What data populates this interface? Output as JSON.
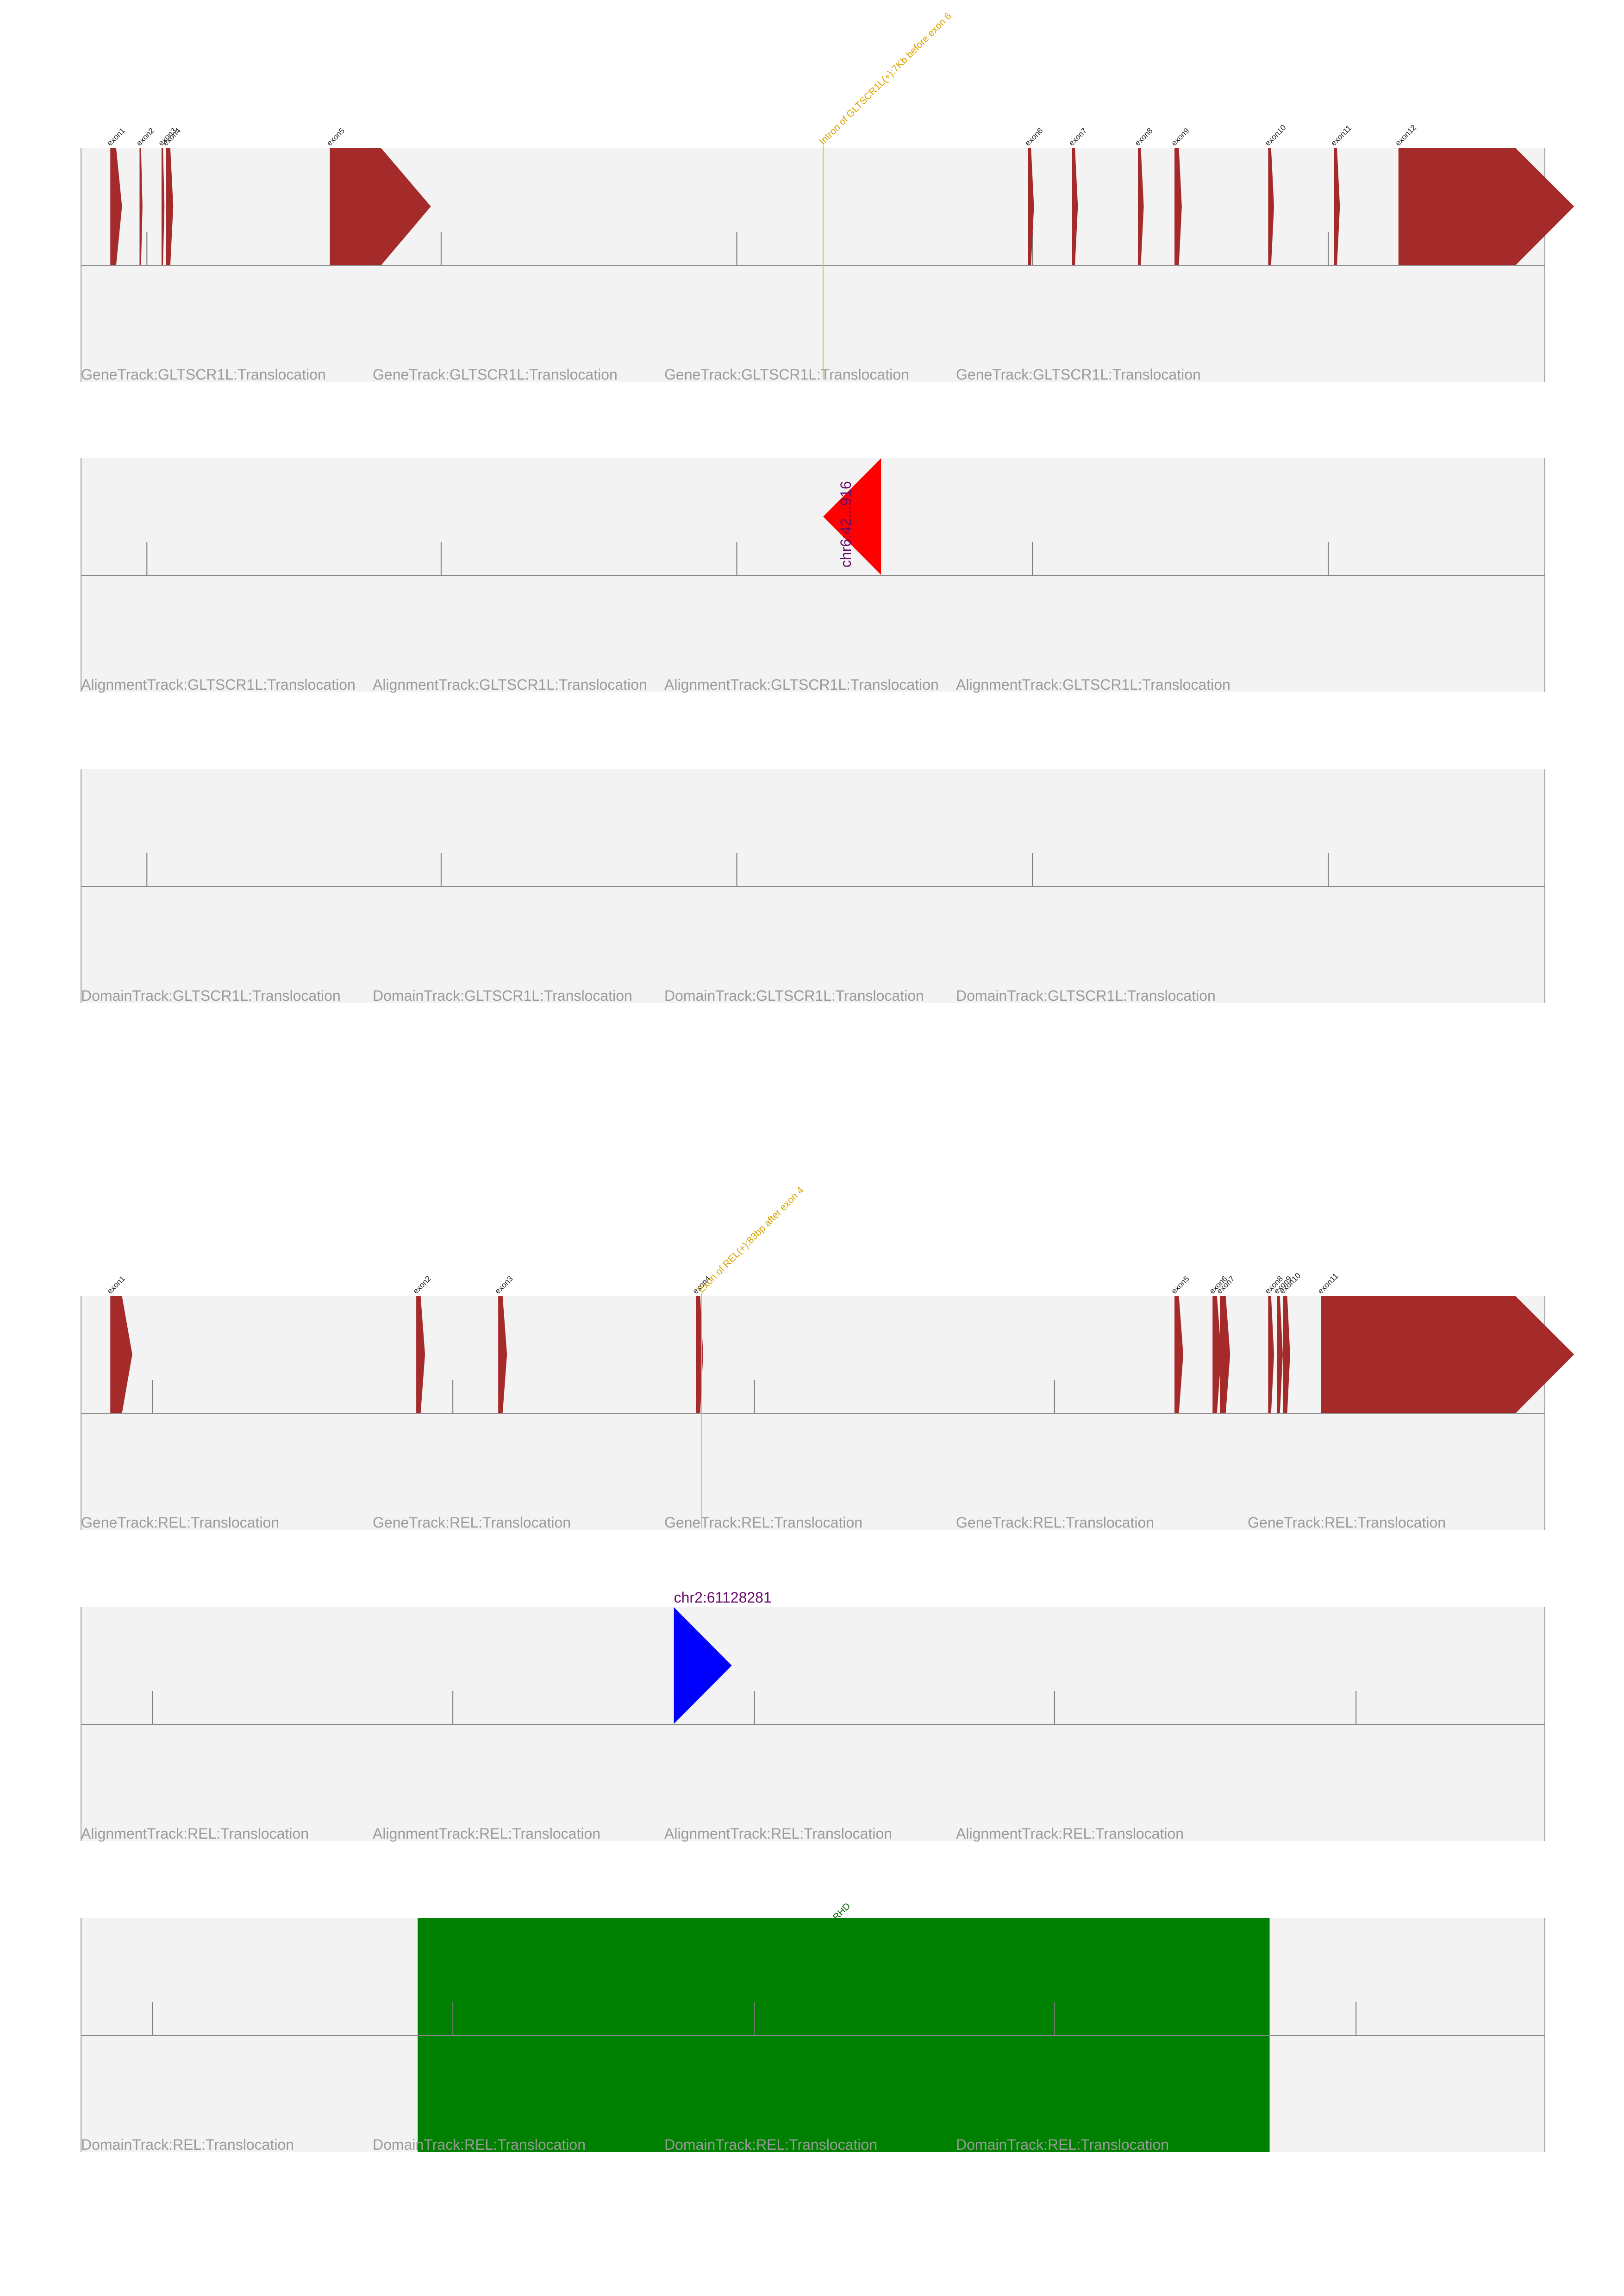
{
  "colors": {
    "panel_bg": "#f3f3f3",
    "exon": "#a52a2a",
    "breakpoint": "#e8b64a",
    "alignment_upstream": "#ff0000",
    "alignment_downstream": "#0000ff",
    "domain": "#008000",
    "track_label": "#9a9a9a",
    "position_label": "#6a0a6a"
  },
  "genes": [
    {
      "gene": "GLTSCR1L",
      "exons": [
        {
          "label": "exon1",
          "start": 0.02,
          "end": 0.024,
          "head": 0.004
        },
        {
          "label": "exon2",
          "start": 0.04,
          "end": 0.041,
          "head": 0.001
        },
        {
          "label": "exon3",
          "start": 0.055,
          "end": 0.056,
          "head": 0.001
        },
        {
          "label": "exon4",
          "start": 0.058,
          "end": 0.061,
          "head": 0.002
        },
        {
          "label": "exon5",
          "start": 0.17,
          "end": 0.205,
          "head": 0.034
        },
        {
          "label": "exon6",
          "start": 0.647,
          "end": 0.649,
          "head": 0.002
        },
        {
          "label": "exon7",
          "start": 0.677,
          "end": 0.679,
          "head": 0.002
        },
        {
          "label": "exon8",
          "start": 0.722,
          "end": 0.724,
          "head": 0.002
        },
        {
          "label": "exon9",
          "start": 0.747,
          "end": 0.75,
          "head": 0.002
        },
        {
          "label": "exon10",
          "start": 0.811,
          "end": 0.813,
          "head": 0.002
        },
        {
          "label": "exon11",
          "start": 0.856,
          "end": 0.858,
          "head": 0.002
        },
        {
          "label": "exon12",
          "start": 0.9,
          "end": 0.98,
          "head": 0.04
        }
      ],
      "ticks": [
        0.045,
        0.246,
        0.448,
        0.65,
        0.852
      ],
      "breakpoint": {
        "pos": 0.507,
        "label": "Intron of GLTSCR1L(+):7Kb before exon 6"
      },
      "alignment": {
        "pos": 0.507,
        "direction": "left",
        "color": "#ff0000",
        "label": "chr6:42...916"
      },
      "domains": [],
      "tracks": [
        {
          "name": "gene",
          "labels": [
            "GeneTrack:GLTSCR1L:Translocation",
            "GeneTrack:GLTSCR1L:Translocation",
            "GeneTrack:GLTSCR1L:Translocation",
            "GeneTrack:GLTSCR1L:Translocation"
          ]
        },
        {
          "name": "alignment",
          "labels": [
            "AlignmentTrack:GLTSCR1L:Translocation",
            "AlignmentTrack:GLTSCR1L:Translocation",
            "AlignmentTrack:GLTSCR1L:Translocation",
            "AlignmentTrack:GLTSCR1L:Translocation"
          ]
        },
        {
          "name": "domain",
          "labels": [
            "DomainTrack:GLTSCR1L:Translocation",
            "DomainTrack:GLTSCR1L:Translocation",
            "DomainTrack:GLTSCR1L:Translocation",
            "DomainTrack:GLTSCR1L:Translocation"
          ]
        }
      ]
    },
    {
      "gene": "REL",
      "exons": [
        {
          "label": "exon1",
          "start": 0.02,
          "end": 0.028,
          "head": 0.007
        },
        {
          "label": "exon2",
          "start": 0.229,
          "end": 0.232,
          "head": 0.003
        },
        {
          "label": "exon3",
          "start": 0.285,
          "end": 0.288,
          "head": 0.003
        },
        {
          "label": "exon4",
          "start": 0.42,
          "end": 0.423,
          "head": 0.002
        },
        {
          "label": "exon5",
          "start": 0.747,
          "end": 0.75,
          "head": 0.003
        },
        {
          "label": "exon6",
          "start": 0.773,
          "end": 0.776,
          "head": 0.003
        },
        {
          "label": "exon7",
          "start": 0.778,
          "end": 0.782,
          "head": 0.003
        },
        {
          "label": "exon8",
          "start": 0.811,
          "end": 0.813,
          "head": 0.002
        },
        {
          "label": "exon9",
          "start": 0.817,
          "end": 0.819,
          "head": 0.002
        },
        {
          "label": "exon10",
          "start": 0.821,
          "end": 0.824,
          "head": 0.002
        },
        {
          "label": "exon11",
          "start": 0.847,
          "end": 0.98,
          "head": 0.04
        }
      ],
      "ticks": [
        0.049,
        0.254,
        0.46,
        0.665,
        0.871
      ],
      "breakpoint": {
        "pos": 0.424,
        "label": "Exon of REL(+):83bp after exon 4"
      },
      "alignment": {
        "pos": 0.405,
        "direction": "right",
        "color": "#0000ff",
        "label": "chr2:61128281"
      },
      "domains": [
        {
          "label": "RHD",
          "start": 0.23,
          "end": 0.812
        }
      ],
      "tracks": [
        {
          "name": "gene",
          "labels": [
            "GeneTrack:REL:Translocation",
            "GeneTrack:REL:Translocation",
            "GeneTrack:REL:Translocation",
            "GeneTrack:REL:Translocation",
            "GeneTrack:REL:Translocation"
          ]
        },
        {
          "name": "alignment",
          "labels": [
            "AlignmentTrack:REL:Translocation",
            "AlignmentTrack:REL:Translocation",
            "AlignmentTrack:REL:Translocation",
            "AlignmentTrack:REL:Translocation"
          ]
        },
        {
          "name": "domain",
          "labels": [
            "DomainTrack:REL:Translocation",
            "DomainTrack:REL:Translocation",
            "DomainTrack:REL:Translocation",
            "DomainTrack:REL:Translocation"
          ]
        }
      ]
    }
  ]
}
